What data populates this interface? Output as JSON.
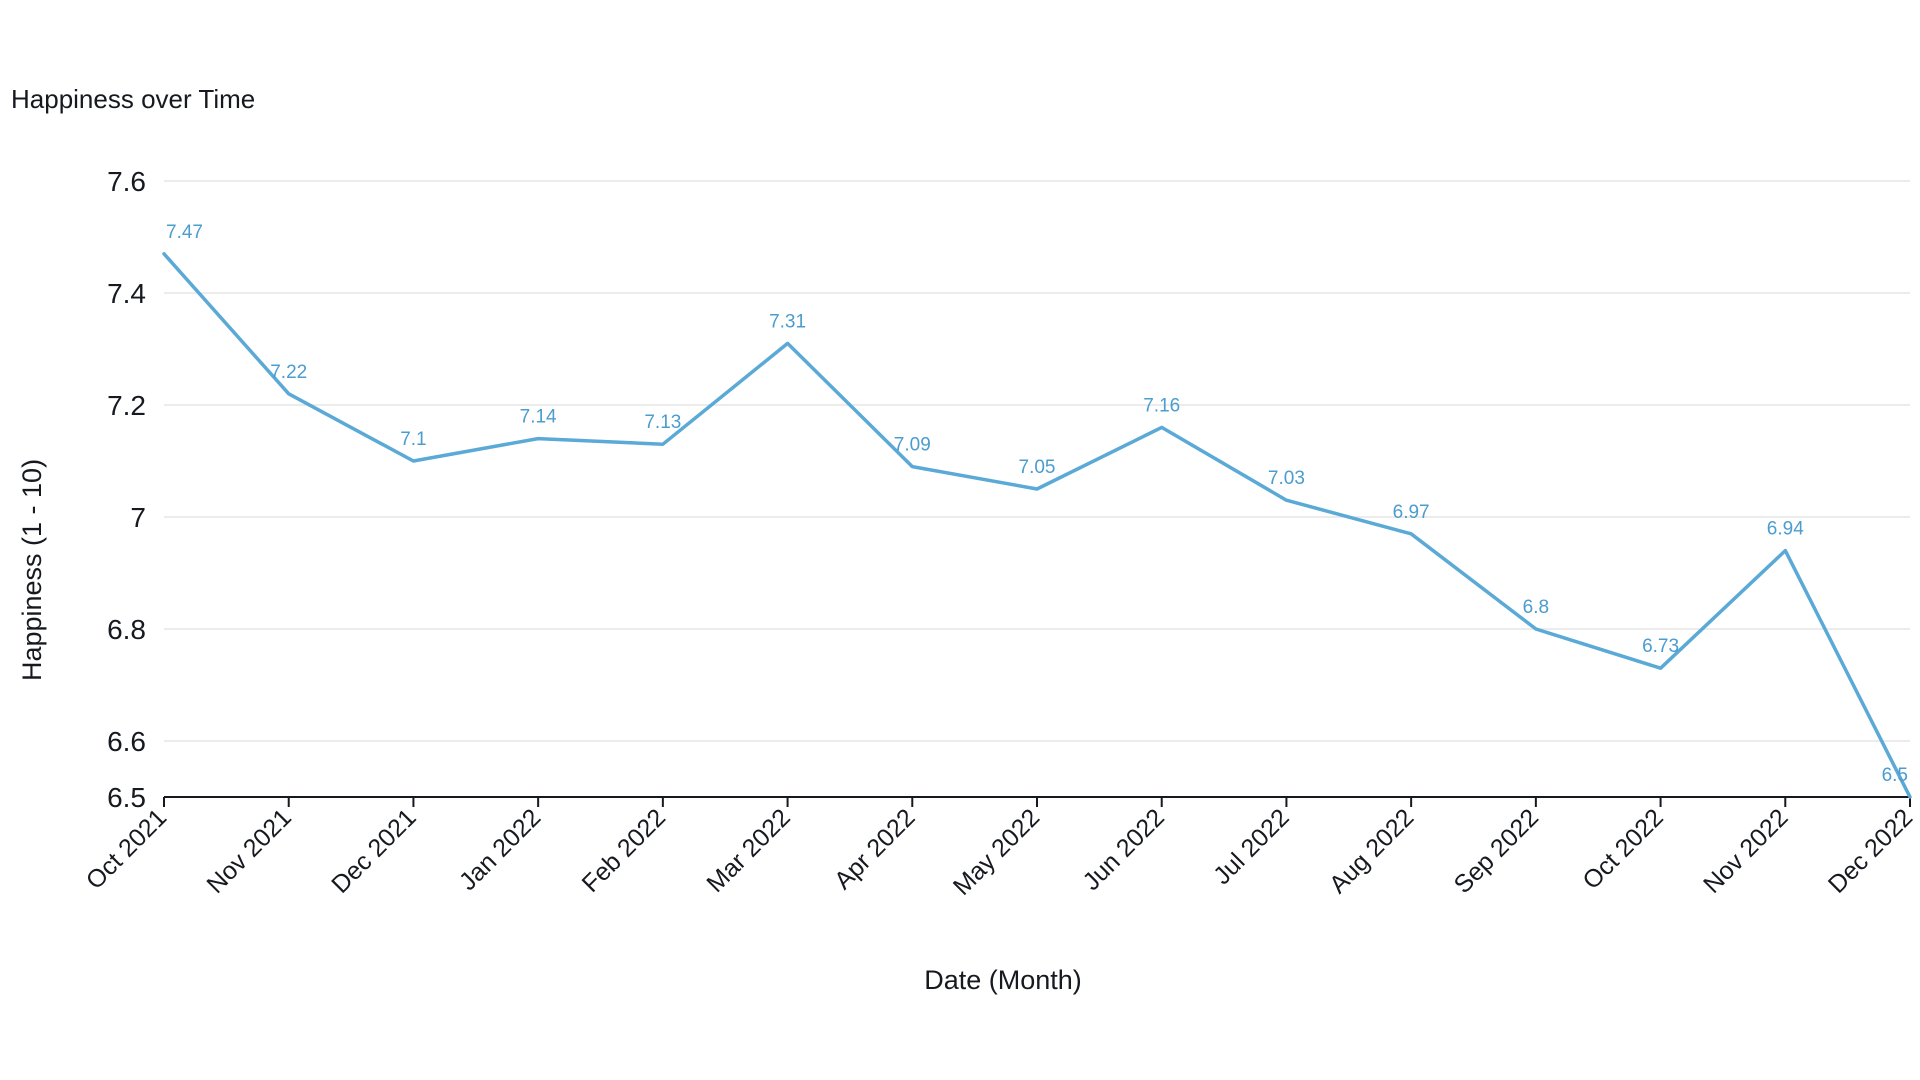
{
  "chart_data": {
    "type": "line",
    "title": "Happiness over Time",
    "xlabel": "Date (Month)",
    "ylabel": "Happiness (1 - 10)",
    "categories": [
      "Oct 2021",
      "Nov 2021",
      "Dec 2021",
      "Jan 2022",
      "Feb 2022",
      "Mar 2022",
      "Apr 2022",
      "May 2022",
      "Jun 2022",
      "Jul 2022",
      "Aug 2022",
      "Sep 2022",
      "Oct 2022",
      "Nov 2022",
      "Dec 2022"
    ],
    "x_dates": [
      "2021-10-01",
      "2021-11-01",
      "2021-12-01",
      "2022-01-01",
      "2022-02-01",
      "2022-03-01",
      "2022-04-01",
      "2022-05-01",
      "2022-06-01",
      "2022-07-01",
      "2022-08-01",
      "2022-09-01",
      "2022-10-01",
      "2022-11-01",
      "2022-12-01"
    ],
    "series": [
      {
        "values": [
          7.47,
          7.22,
          7.1,
          7.14,
          7.13,
          7.31,
          7.09,
          7.05,
          7.16,
          7.03,
          6.97,
          6.8,
          6.73,
          6.94,
          6.5
        ],
        "labels": [
          "7.47",
          "7.22",
          "7.1",
          "7.14",
          "7.13",
          "7.31",
          "7.09",
          "7.05",
          "7.16",
          "7.03",
          "6.97",
          "6.8",
          "6.73",
          "6.94",
          "6.5"
        ]
      }
    ],
    "yticks": [
      6.5,
      6.6,
      6.8,
      7,
      7.2,
      7.4,
      7.6
    ],
    "ytick_labels": [
      "6.5",
      "6.6",
      "6.8",
      "7",
      "7.2",
      "7.4",
      "7.6"
    ],
    "ylim": [
      6.5,
      7.6
    ],
    "grid": true,
    "colors": {
      "line": "#5aa9d6",
      "label": "#4b9ccf",
      "grid": "#e6e6e6",
      "axis": "#16191f"
    }
  }
}
